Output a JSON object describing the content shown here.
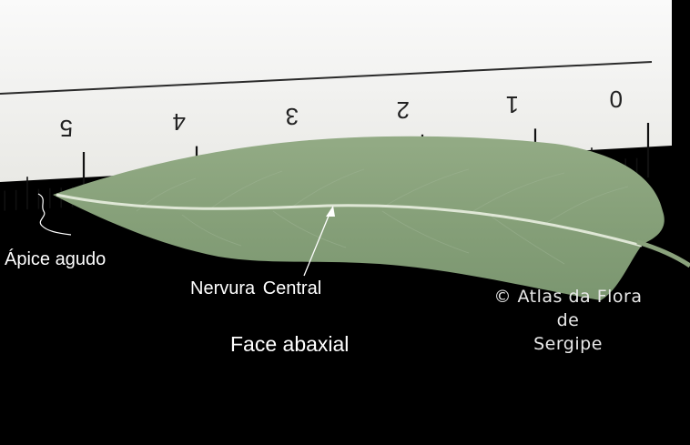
{
  "photo": {
    "description_free": true,
    "colors": {
      "background": "#000000",
      "ruler": "#f2f2ee",
      "ruler_marks": "#111111",
      "leaf": "#8aa27c",
      "midrib": "#dfe7d6",
      "label_text": "#ffffff"
    },
    "ruler_numbers": [
      "5",
      "4",
      "3",
      "2",
      "1",
      "0"
    ],
    "labels": {
      "apex": "Ápice agudo",
      "midrib": "Nervura  Central",
      "face": "Face abaxial"
    },
    "credit": {
      "line1": "© Atlas da Flora",
      "line2": "de",
      "line3": "Sergipe"
    }
  }
}
